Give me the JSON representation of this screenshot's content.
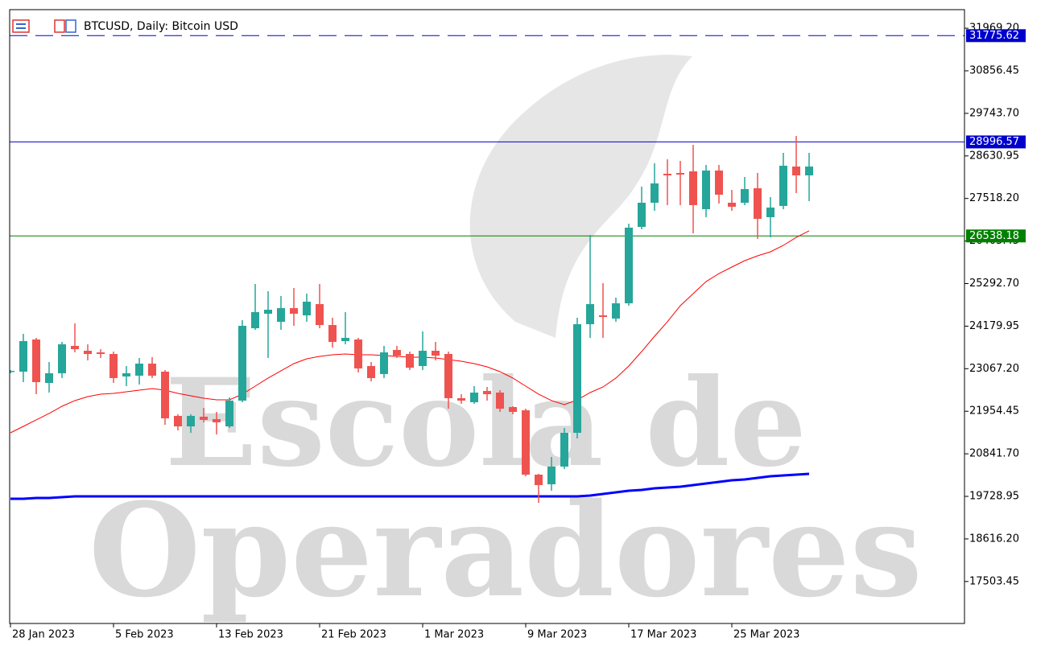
{
  "chart_data": {
    "type": "candlestick",
    "title": "BTCUSD, Daily:  Bitcoin USD",
    "watermark": [
      "Escola de",
      "Operadores"
    ],
    "categories": [
      "28 Jan 2023",
      null,
      null,
      null,
      null,
      null,
      null,
      null,
      "5 Feb 2023",
      null,
      null,
      null,
      null,
      null,
      null,
      null,
      "13 Feb 2023",
      null,
      null,
      null,
      null,
      null,
      null,
      null,
      "21 Feb 2023",
      null,
      null,
      null,
      null,
      null,
      null,
      null,
      "1 Mar 2023",
      null,
      null,
      null,
      null,
      null,
      null,
      null,
      "9 Mar 2023",
      null,
      null,
      null,
      null,
      null,
      null,
      null,
      "17 Mar 2023",
      null,
      null,
      null,
      null,
      null,
      null,
      null,
      "25 Mar 2023",
      null,
      null,
      null,
      null,
      null,
      null
    ],
    "open": [
      22990,
      22990,
      23831,
      22695,
      22948,
      23663,
      23536,
      23494,
      23452,
      22864,
      22885,
      23200,
      22990,
      21833,
      21559,
      21812,
      21749,
      21559,
      22233,
      24125,
      24504,
      24294,
      24651,
      24462,
      24756,
      24209,
      23789,
      23831,
      23137,
      22927,
      23557,
      23452,
      23137,
      23536,
      23452,
      22296,
      22190,
      22485,
      22443,
      22064,
      21980,
      20297,
      20045,
      20508,
      21391,
      24231,
      24462,
      24378,
      24777,
      26776,
      27407,
      28164,
      28185,
      28227,
      27238,
      28248,
      27407,
      27407,
      27785,
      27028,
      27323,
      28353,
      28122
    ],
    "high": [
      23032,
      23978,
      23873,
      23242,
      23768,
      24252,
      23705,
      23578,
      23515,
      23137,
      23347,
      23368,
      23032,
      21875,
      21875,
      22043,
      21938,
      22317,
      24336,
      25282,
      25093,
      24967,
      25177,
      25030,
      25282,
      24399,
      24546,
      23873,
      23242,
      23663,
      23663,
      23515,
      24041,
      23768,
      23515,
      22401,
      22611,
      22590,
      22506,
      22085,
      22022,
      20318,
      20760,
      21517,
      24399,
      26565,
      25303,
      24925,
      26860,
      27828,
      28437,
      28543,
      28501,
      28921,
      28395,
      28395,
      27743,
      28080,
      28185,
      27554,
      28711,
      29153,
      28711
    ],
    "low": [
      22948,
      22716,
      22401,
      22443,
      22822,
      23494,
      23284,
      23347,
      22695,
      22611,
      22653,
      22822,
      21601,
      21454,
      21391,
      21665,
      21349,
      21517,
      22190,
      24083,
      23347,
      24083,
      24188,
      24294,
      24125,
      23620,
      23705,
      22969,
      22737,
      22822,
      23347,
      23032,
      23032,
      23284,
      22022,
      22148,
      22148,
      22233,
      21938,
      21875,
      20255,
      19561,
      19877,
      20445,
      21244,
      23873,
      23873,
      24294,
      24714,
      26713,
      27196,
      27344,
      27344,
      26607,
      27028,
      27386,
      27196,
      27344,
      26460,
      26502,
      27238,
      27659,
      27449
    ],
    "close": [
      23011,
      23789,
      22716,
      22948,
      23705,
      23578,
      23452,
      23452,
      22822,
      22948,
      23200,
      22885,
      21770,
      21559,
      21833,
      21728,
      21665,
      22233,
      24188,
      24546,
      24609,
      24651,
      24504,
      24819,
      24209,
      23768,
      23873,
      23074,
      22822,
      23494,
      23410,
      23094,
      23536,
      23410,
      22296,
      22233,
      22443,
      22401,
      22022,
      21938,
      20297,
      20024,
      20508,
      21391,
      24231,
      24756,
      24420,
      24777,
      26755,
      27407,
      27912,
      28122,
      28143,
      27344,
      28248,
      27617,
      27302,
      27764,
      26986,
      27281,
      28374,
      28122,
      28353
    ],
    "up_color": "#26a69a",
    "down_color": "#ef5350",
    "moving_averages": [
      {
        "color": "#ff0000",
        "width": 1,
        "values": [
          21391,
          21559,
          21728,
          21896,
          22085,
          22233,
          22337,
          22401,
          22422,
          22464,
          22506,
          22548,
          22506,
          22422,
          22358,
          22296,
          22253,
          22253,
          22401,
          22611,
          22822,
          23011,
          23200,
          23326,
          23389,
          23431,
          23452,
          23431,
          23431,
          23410,
          23389,
          23368,
          23368,
          23347,
          23305,
          23263,
          23200,
          23116,
          22990,
          22822,
          22611,
          22401,
          22233,
          22127,
          22253,
          22443,
          22590,
          22822,
          23137,
          23515,
          23915,
          24294,
          24714,
          25030,
          25345,
          25555,
          25724,
          25892,
          26019,
          26124,
          26292,
          26502,
          26671
        ]
      },
      {
        "color": "#0000ff",
        "width": 3,
        "values": [
          19666,
          19666,
          19687,
          19687,
          19708,
          19729,
          19729,
          19729,
          19729,
          19729,
          19729,
          19729,
          19729,
          19729,
          19729,
          19729,
          19729,
          19729,
          19729,
          19729,
          19729,
          19729,
          19729,
          19729,
          19729,
          19729,
          19729,
          19729,
          19729,
          19729,
          19729,
          19729,
          19729,
          19729,
          19729,
          19729,
          19729,
          19729,
          19729,
          19729,
          19729,
          19729,
          19729,
          19729,
          19729,
          19750,
          19792,
          19834,
          19876,
          19897,
          19939,
          19960,
          19981,
          20024,
          20066,
          20108,
          20150,
          20171,
          20213,
          20255,
          20276,
          20297,
          20318
        ]
      }
    ],
    "levels": [
      {
        "value": 31775.62,
        "color": "#0000cc",
        "style": "dashed"
      },
      {
        "value": 28996.57,
        "color": "#0000cc",
        "style": "solid"
      },
      {
        "value": 26538.18,
        "color": "#008000",
        "style": "solid"
      }
    ],
    "ylim": [
      16405.6,
      32455.2
    ],
    "yticks": [
      {
        "value": 31969.2,
        "label": "31969.20"
      },
      30856.45,
      {
        "value": 29743.7,
        "label": "29743.70"
      },
      28630.95,
      {
        "value": 27518.2,
        "label": "27518.20"
      },
      26405.45,
      {
        "value": 25292.7,
        "label": "25292.70"
      },
      24179.95,
      {
        "value": 23067.2,
        "label": "23067.20"
      },
      21954.45,
      {
        "value": 20841.7,
        "label": "20841.70"
      },
      19728.95,
      {
        "value": 18616.2,
        "label": "18616.20"
      },
      17503.45
    ],
    "grid": false
  }
}
